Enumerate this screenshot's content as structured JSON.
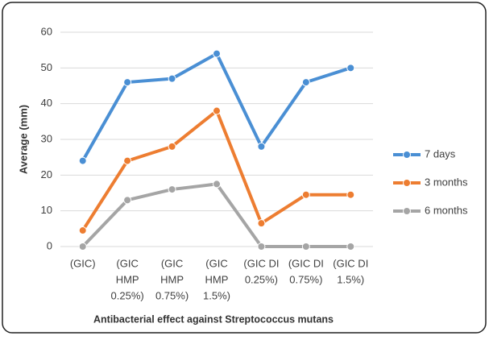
{
  "chart_data": {
    "type": "line",
    "x_label": "Antibacterial effect against Streptococcus mutans",
    "y_label": "Average (mm)",
    "categories": [
      [
        "(GIC)"
      ],
      [
        "(GIC",
        "HMP",
        "0.25%)"
      ],
      [
        "(GIC",
        "HMP",
        "0.75%)"
      ],
      [
        "(GIC",
        "HMP",
        "1.5%)"
      ],
      [
        "(GIC DI",
        "0.25%)"
      ],
      [
        "(GIC DI",
        "0.75%)"
      ],
      [
        "(GIC DI",
        "1.5%)"
      ]
    ],
    "series": [
      {
        "name": "7 days",
        "color": "#4a8fd4",
        "values": [
          24,
          46,
          47,
          54,
          28,
          46,
          50
        ]
      },
      {
        "name": "3 months",
        "color": "#ed7d31",
        "values": [
          4.5,
          24,
          28,
          38,
          6.5,
          14.5,
          14.5
        ]
      },
      {
        "name": "6 months",
        "color": "#a5a5a5",
        "values": [
          0,
          13,
          16,
          17.5,
          0,
          0,
          0
        ]
      }
    ],
    "ylim": [
      0,
      60
    ],
    "yticks": [
      0,
      10,
      20,
      30,
      40,
      50,
      60
    ],
    "grid": true,
    "legend": "right"
  }
}
